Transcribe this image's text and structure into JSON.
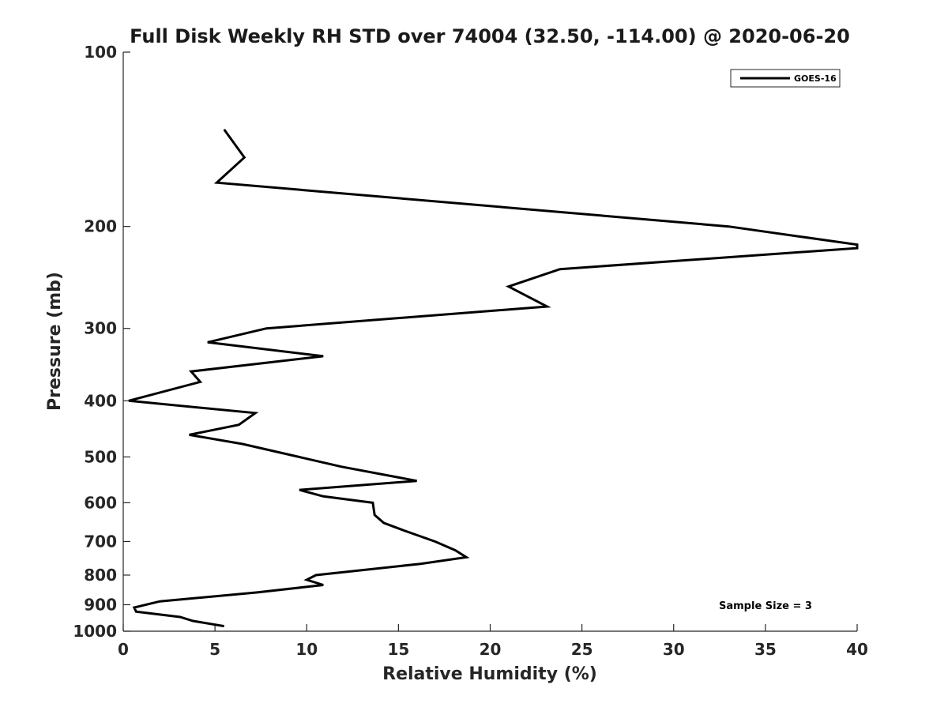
{
  "chart_data": {
    "type": "line",
    "title": "Full Disk Weekly RH STD over 74004 (32.50, -114.00) @ 2020-06-20",
    "xlabel": "Relative Humidity (%)",
    "ylabel": "Pressure (mb)",
    "xlim": [
      0,
      40
    ],
    "ylim": [
      100,
      1000
    ],
    "y_scale": "log",
    "y_reversed": true,
    "x_ticks": [
      "0",
      "5",
      "10",
      "15",
      "20",
      "25",
      "30",
      "35",
      "40"
    ],
    "y_ticks": [
      "100",
      "200",
      "300",
      "400",
      "500",
      "600",
      "700",
      "800",
      "900",
      "1000"
    ],
    "grid": false,
    "legend": {
      "position": "top-right",
      "entries": [
        "GOES-16"
      ]
    },
    "annotation": "Sample Size = 3",
    "series": [
      {
        "name": "GOES-16",
        "color": "#000000",
        "points": [
          [
            5.5,
            136
          ],
          [
            6.6,
            152
          ],
          [
            5.1,
            168
          ],
          [
            33.0,
            200
          ],
          [
            40.0,
            215
          ],
          [
            40.0,
            218
          ],
          [
            23.8,
            237
          ],
          [
            21.0,
            254
          ],
          [
            23.1,
            275
          ],
          [
            7.8,
            300
          ],
          [
            4.6,
            317
          ],
          [
            10.9,
            335
          ],
          [
            3.7,
            356
          ],
          [
            4.2,
            371
          ],
          [
            0.3,
            400
          ],
          [
            7.2,
            420
          ],
          [
            6.3,
            440
          ],
          [
            3.6,
            458
          ],
          [
            6.5,
            475
          ],
          [
            11.9,
            520
          ],
          [
            16.0,
            550
          ],
          [
            9.6,
            570
          ],
          [
            10.9,
            585
          ],
          [
            13.6,
            600
          ],
          [
            13.7,
            630
          ],
          [
            14.2,
            650
          ],
          [
            15.3,
            670
          ],
          [
            17.0,
            700
          ],
          [
            18.1,
            725
          ],
          [
            18.7,
            745
          ],
          [
            16.2,
            765
          ],
          [
            10.5,
            800
          ],
          [
            10.0,
            815
          ],
          [
            10.9,
            832
          ],
          [
            7.3,
            857
          ],
          [
            2.0,
            888
          ],
          [
            0.6,
            910
          ],
          [
            0.7,
            925
          ],
          [
            3.1,
            945
          ],
          [
            3.8,
            960
          ],
          [
            5.5,
            980
          ]
        ]
      }
    ]
  }
}
